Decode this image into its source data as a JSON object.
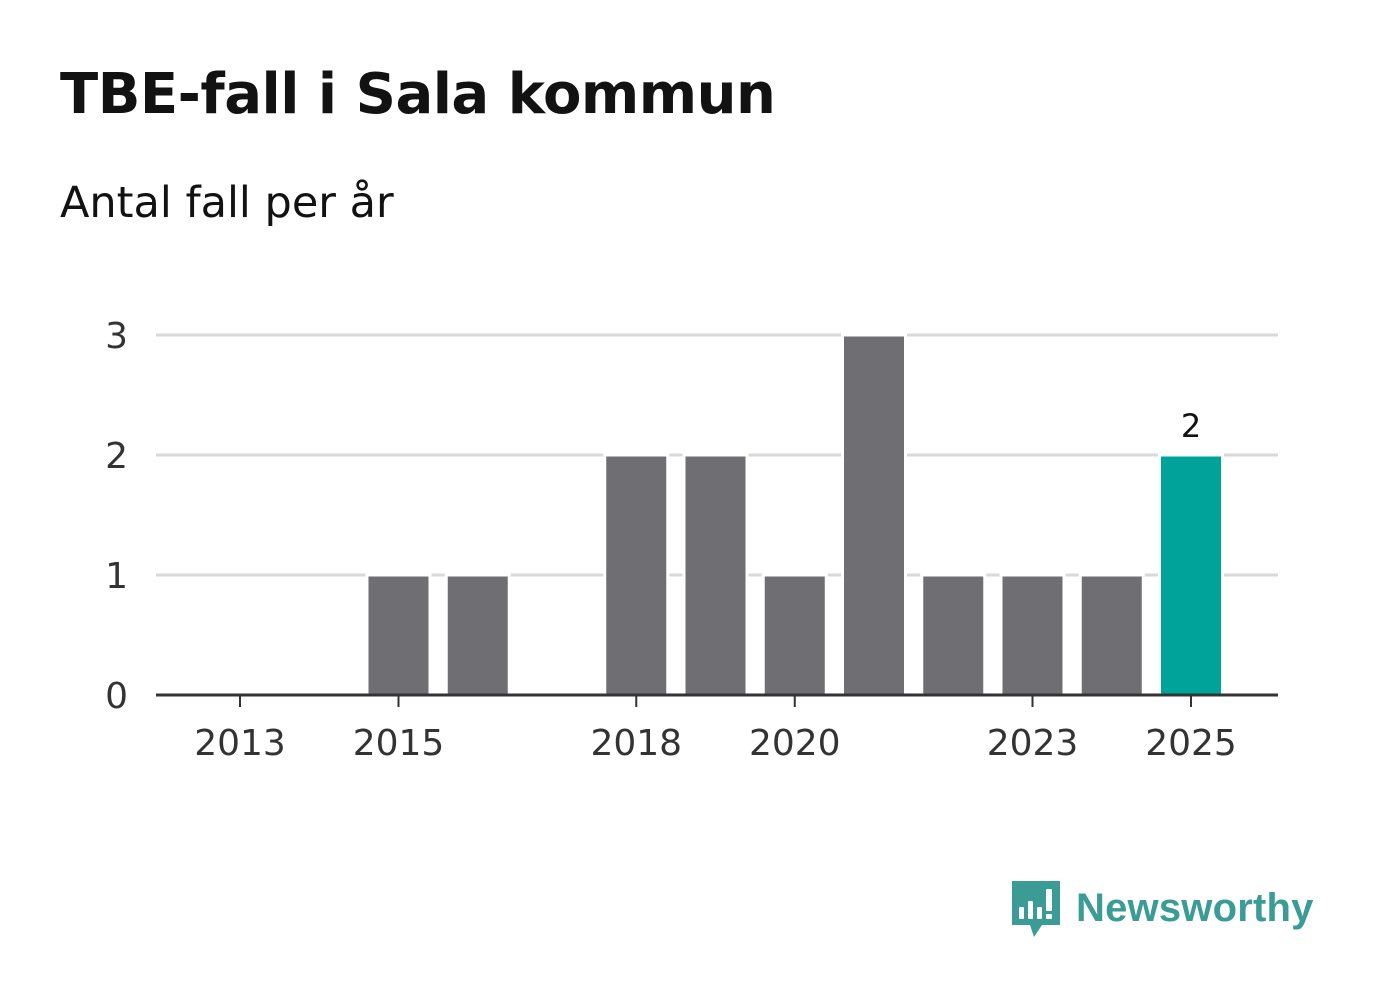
{
  "title": "TBE-fall i Sala kommun",
  "subtitle": "Antal fall per år",
  "brand": {
    "name": "Newsworthy",
    "icon": "newsworthy-logo-icon",
    "color": "#3b9c96"
  },
  "colors": {
    "bar": "#6f6e73",
    "highlight": "#00a39a",
    "grid": "#d9d9d9",
    "axis": "#333333",
    "text": "#333333"
  },
  "chart_data": {
    "type": "bar",
    "categories": [
      "2013",
      "2014",
      "2015",
      "2016",
      "2017",
      "2018",
      "2019",
      "2020",
      "2021",
      "2022",
      "2023",
      "2024",
      "2025"
    ],
    "values": [
      0,
      0,
      1,
      1,
      0,
      2,
      2,
      1,
      3,
      1,
      1,
      1,
      2
    ],
    "xticks": [
      "2013",
      "2015",
      "2018",
      "2020",
      "2023",
      "2025"
    ],
    "yticks": [
      0,
      1,
      2,
      3
    ],
    "ylim": [
      0,
      3
    ],
    "highlight": "2025",
    "data_labels": [
      {
        "category": "2025",
        "text": "2"
      }
    ],
    "grid": true,
    "legend": "none",
    "xlabel": "",
    "ylabel": ""
  }
}
